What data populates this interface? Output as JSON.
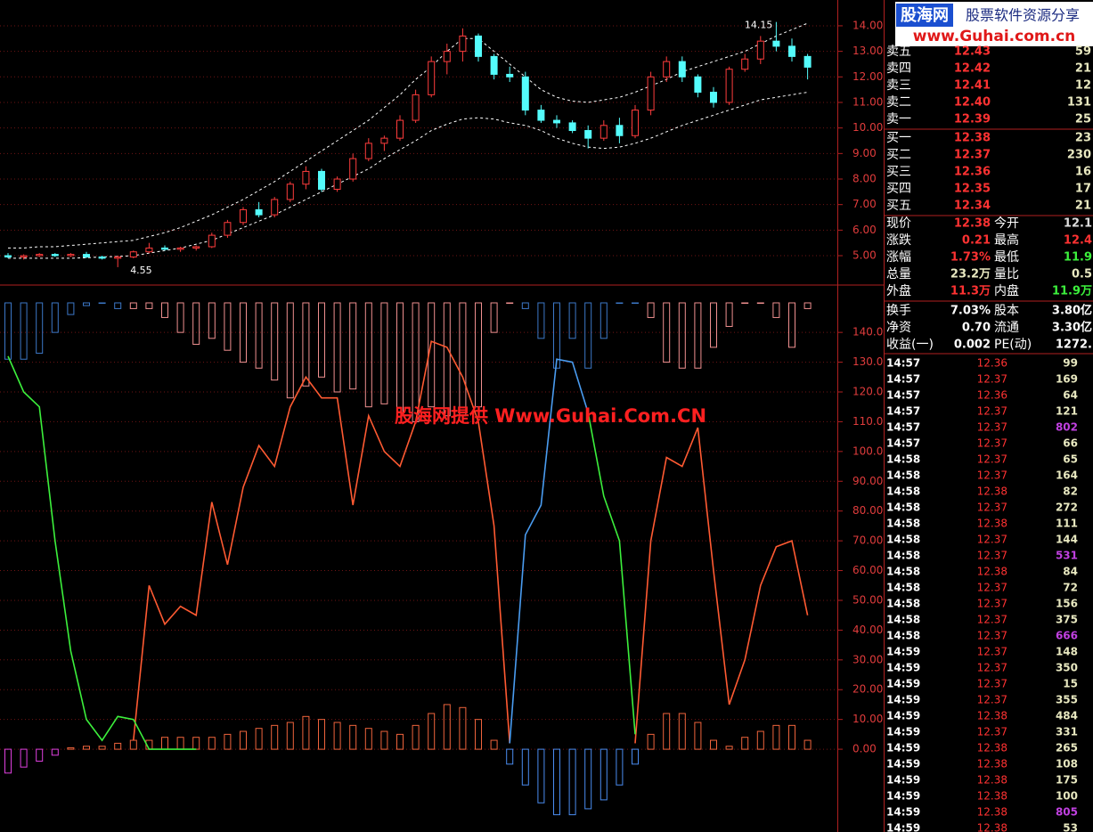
{
  "logo": {
    "brand": "股海网",
    "slogan": "股票软件资源分享",
    "url": "www.Guhai.com.cn"
  },
  "watermark": "股海网提供 Www.Guhai.Com.CN",
  "price_chart": {
    "type": "candlestick",
    "ylim": [
      3.85,
      15.01
    ],
    "yticks": [
      {
        "value": 5,
        "label": "5.00"
      },
      {
        "value": 6,
        "label": "6.00"
      },
      {
        "value": 7,
        "label": "7.00"
      },
      {
        "value": 8,
        "label": "8.00"
      },
      {
        "value": 9,
        "label": "9.00"
      },
      {
        "value": 10,
        "label": "10.00"
      },
      {
        "value": 11,
        "label": "11.00"
      },
      {
        "value": 12,
        "label": "12.00"
      },
      {
        "value": 13,
        "label": "13.00"
      },
      {
        "value": 14,
        "label": "14.00"
      }
    ],
    "candles": [
      [
        5.0,
        5.1,
        4.9,
        4.95
      ],
      [
        4.95,
        5.05,
        4.85,
        5.0
      ],
      [
        5.0,
        5.1,
        4.95,
        5.05
      ],
      [
        5.05,
        5.1,
        4.95,
        5.0
      ],
      [
        5.0,
        5.1,
        4.95,
        5.05
      ],
      [
        5.05,
        5.15,
        4.9,
        4.95
      ],
      [
        4.95,
        5.0,
        4.85,
        4.9
      ],
      [
        4.9,
        5.0,
        4.55,
        4.95
      ],
      [
        4.95,
        5.2,
        4.9,
        5.15
      ],
      [
        5.15,
        5.5,
        5.1,
        5.3
      ],
      [
        5.3,
        5.4,
        5.2,
        5.25
      ],
      [
        5.25,
        5.35,
        5.15,
        5.3
      ],
      [
        5.3,
        5.4,
        5.2,
        5.35
      ],
      [
        5.35,
        5.9,
        5.3,
        5.8
      ],
      [
        5.8,
        6.4,
        5.7,
        6.3
      ],
      [
        6.3,
        6.9,
        6.2,
        6.8
      ],
      [
        6.8,
        7.1,
        6.5,
        6.6
      ],
      [
        6.6,
        7.3,
        6.5,
        7.2
      ],
      [
        7.2,
        7.9,
        7.1,
        7.8
      ],
      [
        7.8,
        8.5,
        7.6,
        8.3
      ],
      [
        8.3,
        8.4,
        7.5,
        7.6
      ],
      [
        7.6,
        8.1,
        7.5,
        8.0
      ],
      [
        8.0,
        9.0,
        7.9,
        8.8
      ],
      [
        8.8,
        9.6,
        8.7,
        9.4
      ],
      [
        9.4,
        9.7,
        9.1,
        9.6
      ],
      [
        9.6,
        10.5,
        9.5,
        10.3
      ],
      [
        10.3,
        11.5,
        10.2,
        11.3
      ],
      [
        11.3,
        12.8,
        11.2,
        12.6
      ],
      [
        12.6,
        13.3,
        12.1,
        13.0
      ],
      [
        13.0,
        13.9,
        12.6,
        13.6
      ],
      [
        13.6,
        13.7,
        12.6,
        12.8
      ],
      [
        12.8,
        12.9,
        11.9,
        12.1
      ],
      [
        12.1,
        12.4,
        11.8,
        12.0
      ],
      [
        12.0,
        12.2,
        10.5,
        10.7
      ],
      [
        10.7,
        10.9,
        10.2,
        10.3
      ],
      [
        10.3,
        10.5,
        10.0,
        10.2
      ],
      [
        10.2,
        10.3,
        9.8,
        9.9
      ],
      [
        9.9,
        10.1,
        9.2,
        9.6
      ],
      [
        9.6,
        10.3,
        9.5,
        10.1
      ],
      [
        10.1,
        10.4,
        9.4,
        9.7
      ],
      [
        9.7,
        10.9,
        9.6,
        10.7
      ],
      [
        10.7,
        12.2,
        10.5,
        12.0
      ],
      [
        12.0,
        12.8,
        11.8,
        12.6
      ],
      [
        12.6,
        12.8,
        11.8,
        12.0
      ],
      [
        12.0,
        12.1,
        11.2,
        11.4
      ],
      [
        11.4,
        11.6,
        10.8,
        11.0
      ],
      [
        11.0,
        12.4,
        10.9,
        12.3
      ],
      [
        12.3,
        12.9,
        12.2,
        12.7
      ],
      [
        12.7,
        13.6,
        12.5,
        13.4
      ],
      [
        13.4,
        14.15,
        13.0,
        13.2
      ],
      [
        13.2,
        13.5,
        12.6,
        12.8
      ],
      [
        12.8,
        12.9,
        11.9,
        12.38
      ]
    ],
    "upper_band": [
      5.3,
      5.3,
      5.35,
      5.35,
      5.4,
      5.45,
      5.5,
      5.55,
      5.6,
      5.75,
      5.9,
      6.1,
      6.35,
      6.6,
      6.9,
      7.2,
      7.55,
      7.9,
      8.3,
      8.7,
      9.1,
      9.5,
      9.9,
      10.3,
      10.8,
      11.3,
      11.9,
      12.4,
      13.0,
      13.5,
      13.5,
      13.0,
      12.5,
      12.0,
      11.5,
      11.2,
      11.05,
      11.0,
      11.1,
      11.2,
      11.4,
      11.65,
      11.9,
      12.2,
      12.4,
      12.6,
      12.8,
      13.0,
      13.3,
      13.6,
      13.85,
      14.1
    ],
    "lower_band": [
      4.9,
      4.9,
      4.9,
      4.9,
      4.9,
      4.92,
      4.95,
      4.97,
      5.0,
      5.1,
      5.2,
      5.3,
      5.45,
      5.6,
      5.85,
      6.1,
      6.35,
      6.6,
      6.9,
      7.2,
      7.5,
      7.8,
      8.1,
      8.4,
      8.8,
      9.15,
      9.5,
      9.9,
      10.15,
      10.35,
      10.4,
      10.35,
      10.2,
      10.1,
      9.9,
      9.6,
      9.4,
      9.25,
      9.2,
      9.25,
      9.4,
      9.6,
      9.85,
      10.1,
      10.3,
      10.5,
      10.7,
      10.9,
      11.1,
      11.2,
      11.3,
      11.4
    ],
    "high_label": "14.15",
    "low_label": "4.55"
  },
  "indicator": {
    "ylim": [
      -27.8,
      155.9
    ],
    "yticks": [
      {
        "value": 0,
        "label": "0.00"
      },
      {
        "value": 10,
        "label": "10.00"
      },
      {
        "value": 20,
        "label": "20.00"
      },
      {
        "value": 30,
        "label": "30.00"
      },
      {
        "value": 40,
        "label": "40.00"
      },
      {
        "value": 50,
        "label": "50.00"
      },
      {
        "value": 60,
        "label": "60.00"
      },
      {
        "value": 70,
        "label": "70.00"
      },
      {
        "value": 80,
        "label": "80.00"
      },
      {
        "value": 90,
        "label": "90.00"
      },
      {
        "value": 100,
        "label": "100.0"
      },
      {
        "value": 110,
        "label": "110.0"
      },
      {
        "value": 120,
        "label": "120.0"
      },
      {
        "value": 130,
        "label": "130.0"
      },
      {
        "value": 140,
        "label": "140.0"
      }
    ],
    "lines": [
      {
        "color": "#ff5a32",
        "values": [
          null,
          null,
          null,
          null,
          null,
          null,
          null,
          null,
          3,
          55,
          42,
          48,
          45,
          83,
          62,
          88,
          102,
          95,
          115,
          125,
          118,
          118,
          82,
          112,
          100,
          95,
          110,
          137,
          135,
          125,
          110,
          75,
          2,
          null,
          null,
          null,
          null,
          null,
          null,
          null,
          2,
          70,
          98,
          95,
          108,
          60,
          15,
          30,
          55,
          68,
          70,
          45
        ]
      },
      {
        "color": "#3cf03c",
        "values": [
          132,
          120,
          115,
          70,
          33,
          10,
          3,
          11,
          10,
          0,
          0,
          0,
          0,
          null,
          null,
          null,
          null,
          null,
          null,
          null,
          null,
          null,
          null,
          null,
          null,
          null,
          null,
          null,
          null,
          null,
          null,
          null,
          null,
          null,
          null,
          null,
          null,
          113,
          85,
          70,
          5,
          null,
          null,
          null,
          null,
          null,
          null,
          null,
          null,
          null,
          null,
          null
        ]
      },
      {
        "color": "#4a9cf0",
        "values": [
          null,
          null,
          null,
          null,
          null,
          null,
          null,
          null,
          null,
          null,
          null,
          null,
          null,
          null,
          null,
          null,
          null,
          null,
          null,
          null,
          null,
          null,
          null,
          null,
          null,
          null,
          null,
          null,
          null,
          null,
          null,
          null,
          2,
          72,
          82,
          131,
          130,
          113,
          null,
          null,
          null,
          null,
          null,
          null,
          null,
          null,
          null,
          null,
          null,
          null,
          null,
          null
        ]
      }
    ],
    "bars_top": [
      {
        "color": "#3c78c8",
        "values": [
          131,
          131,
          133,
          140,
          146,
          149,
          150,
          148,
          null,
          null,
          null,
          null,
          null,
          null,
          null,
          null,
          null,
          null,
          null,
          null,
          null,
          null,
          null,
          null,
          null,
          null,
          null,
          null,
          null,
          null,
          null,
          null,
          null,
          148,
          138,
          128,
          138,
          128,
          138,
          150,
          150,
          null,
          null,
          null,
          null,
          null,
          null,
          null,
          null,
          null,
          null,
          null
        ]
      },
      {
        "color": "#f09090",
        "values": [
          null,
          null,
          null,
          null,
          null,
          null,
          null,
          null,
          148,
          148,
          145,
          140,
          136,
          138,
          134,
          130,
          128,
          124,
          118,
          122,
          125,
          120,
          121,
          115,
          116,
          113,
          110,
          115,
          112,
          112,
          115,
          140,
          150,
          null,
          null,
          null,
          null,
          null,
          null,
          null,
          null,
          145,
          130,
          128,
          128,
          135,
          142,
          150,
          150,
          145,
          135,
          148
        ]
      }
    ],
    "bars_bottom": [
      {
        "color": "#e040e0",
        "values": [
          -8,
          -6,
          -4,
          -2,
          null,
          null,
          null,
          null,
          null,
          null,
          null,
          null,
          null,
          null,
          null,
          null,
          null,
          null,
          null,
          null,
          null,
          null,
          null,
          null,
          null,
          null,
          null,
          null,
          null,
          null,
          null,
          null,
          null,
          null,
          null,
          null,
          null,
          null,
          null,
          null,
          null,
          null,
          null,
          null,
          null,
          null,
          null,
          null,
          null,
          null,
          null,
          null
        ]
      },
      {
        "color": "#f0643c",
        "values": [
          null,
          null,
          null,
          null,
          0.5,
          1,
          1,
          2,
          3,
          3,
          4,
          4,
          4,
          4,
          5,
          6,
          7,
          8,
          9,
          11,
          10,
          9,
          8,
          7,
          6,
          5,
          8,
          12,
          15,
          14,
          10,
          3,
          null,
          null,
          null,
          null,
          null,
          null,
          null,
          null,
          null,
          5,
          12,
          12,
          9,
          3,
          1,
          4,
          6,
          8,
          8,
          3
        ]
      },
      {
        "color": "#4a8cf0",
        "values": [
          null,
          null,
          null,
          null,
          null,
          null,
          null,
          null,
          null,
          null,
          null,
          null,
          null,
          null,
          null,
          null,
          null,
          null,
          null,
          null,
          null,
          null,
          null,
          null,
          null,
          null,
          null,
          null,
          null,
          null,
          null,
          null,
          -5,
          -12,
          -18,
          -22,
          -22,
          -20,
          -17,
          -12,
          -5,
          null,
          null,
          null,
          null,
          null,
          null,
          null,
          null,
          null,
          null,
          null
        ]
      }
    ]
  },
  "order_book": {
    "sell": [
      [
        "卖五",
        "12.43",
        "59"
      ],
      [
        "卖四",
        "12.42",
        "21"
      ],
      [
        "卖三",
        "12.41",
        "12"
      ],
      [
        "卖二",
        "12.40",
        "131"
      ],
      [
        "卖一",
        "12.39",
        "25"
      ]
    ],
    "buy": [
      [
        "买一",
        "12.38",
        "23"
      ],
      [
        "买二",
        "12.37",
        "230"
      ],
      [
        "买三",
        "12.36",
        "16"
      ],
      [
        "买四",
        "12.35",
        "17"
      ],
      [
        "买五",
        "12.34",
        "21"
      ]
    ]
  },
  "stats": [
    [
      "现价",
      "12.38",
      "今开",
      "12.1"
    ],
    [
      "涨跌",
      "0.21",
      "最高",
      "12.4"
    ],
    [
      "涨幅",
      "1.73%",
      "最低",
      "11.9"
    ],
    [
      "总量",
      "23.2万",
      "量比",
      "0.5"
    ],
    [
      "外盘",
      "11.3万",
      "内盘",
      "11.9万"
    ],
    [
      "换手",
      "7.03%",
      "股本",
      "3.80亿"
    ],
    [
      "净资",
      "0.70",
      "流通",
      "3.30亿"
    ],
    [
      "收益(一)",
      "0.002",
      "PE(动)",
      "1272."
    ]
  ],
  "trades": [
    [
      "14:57",
      "12.36",
      "99"
    ],
    [
      "14:57",
      "12.37",
      "169"
    ],
    [
      "14:57",
      "12.36",
      "64"
    ],
    [
      "14:57",
      "12.37",
      "121"
    ],
    [
      "14:57",
      "12.37",
      "802"
    ],
    [
      "14:57",
      "12.37",
      "66"
    ],
    [
      "14:58",
      "12.37",
      "65"
    ],
    [
      "14:58",
      "12.37",
      "164"
    ],
    [
      "14:58",
      "12.38",
      "82"
    ],
    [
      "14:58",
      "12.37",
      "272"
    ],
    [
      "14:58",
      "12.38",
      "111"
    ],
    [
      "14:58",
      "12.37",
      "144"
    ],
    [
      "14:58",
      "12.37",
      "531"
    ],
    [
      "14:58",
      "12.38",
      "84"
    ],
    [
      "14:58",
      "12.37",
      "72"
    ],
    [
      "14:58",
      "12.37",
      "156"
    ],
    [
      "14:58",
      "12.37",
      "375"
    ],
    [
      "14:58",
      "12.37",
      "666"
    ],
    [
      "14:59",
      "12.37",
      "148"
    ],
    [
      "14:59",
      "12.37",
      "350"
    ],
    [
      "14:59",
      "12.37",
      "15"
    ],
    [
      "14:59",
      "12.37",
      "355"
    ],
    [
      "14:59",
      "12.38",
      "484"
    ],
    [
      "14:59",
      "12.37",
      "331"
    ],
    [
      "14:59",
      "12.38",
      "265"
    ],
    [
      "14:59",
      "12.38",
      "108"
    ],
    [
      "14:59",
      "12.38",
      "175"
    ],
    [
      "14:59",
      "12.38",
      "100"
    ],
    [
      "14:59",
      "12.38",
      "805"
    ],
    [
      "14:59",
      "12.38",
      "53"
    ]
  ]
}
